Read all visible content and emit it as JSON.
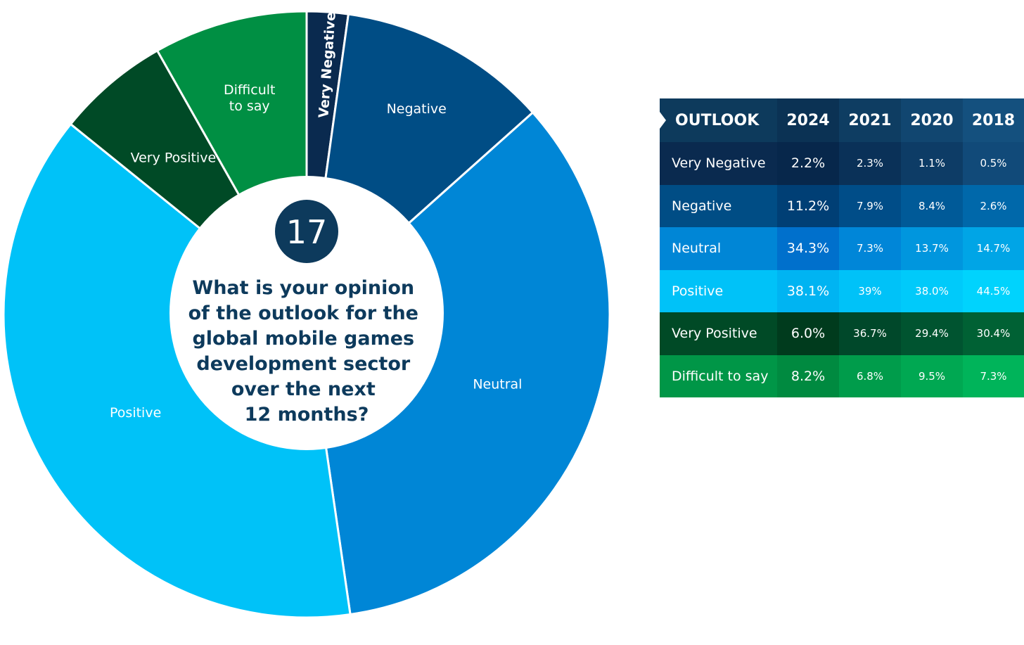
{
  "chart_data": {
    "type": "pie",
    "badge": "17",
    "question_lines": [
      "What is your opinion",
      "of the outlook for the",
      "global mobile games",
      "development sector",
      "over the next",
      "12 months?"
    ],
    "slices": [
      {
        "label": "Very Negative",
        "value": 2.2,
        "color": "#0a2a4f"
      },
      {
        "label": "Negative",
        "value": 11.2,
        "color": "#004d85"
      },
      {
        "label": "Neutral",
        "value": 34.3,
        "color": "#0086d6"
      },
      {
        "label": "Positive",
        "value": 38.1,
        "color": "#00c2f8"
      },
      {
        "label": "Very Positive",
        "value": 6.0,
        "color": "#004a26"
      },
      {
        "label": "Difficult\nto say",
        "value": 8.2,
        "color": "#008f43"
      }
    ]
  },
  "table": {
    "header_label": "OUTLOOK",
    "years": [
      "2024",
      "2021",
      "2020",
      "2018"
    ],
    "rows": [
      {
        "label": "Very Negative",
        "values": [
          "2.2%",
          "2.3%",
          "1.1%",
          "0.5%"
        ],
        "colors": [
          "#0a2a4f",
          "#07274b",
          "#0a3158",
          "#0d3c66",
          "#114a79"
        ]
      },
      {
        "label": "Negative",
        "values": [
          "11.2%",
          "7.9%",
          "8.4%",
          "2.6%"
        ],
        "colors": [
          "#004d85",
          "#003f75",
          "#004d88",
          "#005a98",
          "#0068aa"
        ]
      },
      {
        "label": "Neutral",
        "values": [
          "34.3%",
          "7.3%",
          "13.7%",
          "14.7%"
        ],
        "colors": [
          "#0086d6",
          "#0070cc",
          "#0086d8",
          "#0096de",
          "#00a5e6"
        ]
      },
      {
        "label": "Positive",
        "values": [
          "38.1%",
          "39%",
          "38.0%",
          "44.5%"
        ],
        "colors": [
          "#00c2f8",
          "#00b4f2",
          "#00c2f8",
          "#00cafa",
          "#00d3fd"
        ]
      },
      {
        "label": "Very Positive",
        "values": [
          "6.0%",
          "36.7%",
          "29.4%",
          "30.4%"
        ],
        "colors": [
          "#004a26",
          "#003b1d",
          "#00482a",
          "#005430",
          "#006134"
        ]
      },
      {
        "label": "Difficult to say",
        "values": [
          "8.2%",
          "6.8%",
          "9.5%",
          "7.3%"
        ],
        "colors": [
          "#009647",
          "#008a40",
          "#009c4b",
          "#00a852",
          "#00b45a"
        ]
      }
    ],
    "header_colors": [
      "#0d3a5c",
      "#0b3254",
      "#0e3d62",
      "#114670",
      "#14507e"
    ]
  }
}
